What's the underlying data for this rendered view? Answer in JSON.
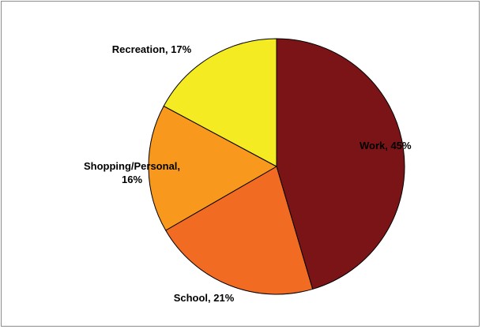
{
  "chart_data": {
    "type": "pie",
    "title": "",
    "start_angle_deg": 0,
    "direction": "clockwise",
    "legend": "none",
    "slices": [
      {
        "name": "Work",
        "value": 45,
        "label_lines": [
          "Work, 45%"
        ],
        "color": "#7B1416"
      },
      {
        "name": "School",
        "value": 21,
        "label_lines": [
          "School, 21%"
        ],
        "color": "#F26B23"
      },
      {
        "name": "Shopping/Personal",
        "value": 16,
        "label_lines": [
          "Shopping/Personal,",
          "16%"
        ],
        "color": "#F8991D"
      },
      {
        "name": "Recreation",
        "value": 17,
        "label_lines": [
          "Recreation, 17%"
        ],
        "color": "#F4EB22"
      }
    ],
    "slice_border_color": "#000000"
  }
}
